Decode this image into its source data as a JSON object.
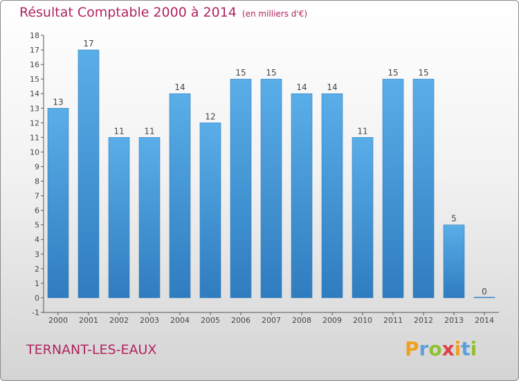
{
  "title": "Résultat Comptable 2000 à 2014",
  "subtitle": "(en milliers d'€)",
  "commune": "TERNANT-LES-EAUX",
  "brand": {
    "letters": [
      "P",
      "r",
      "o",
      "x",
      "i",
      "t",
      "i"
    ],
    "colors": [
      "#f0a020",
      "#5aa0dc",
      "#90c030",
      "#e04040",
      "#f0a020",
      "#5aa0dc",
      "#90c030"
    ]
  },
  "colors": {
    "bar_light": "#5aaee8",
    "bar_dark": "#2f7cbf",
    "title": "#b0245c"
  },
  "chart_data": {
    "type": "bar",
    "title": "Résultat Comptable 2000 à 2014",
    "subtitle": "(en milliers d'€)",
    "categories": [
      "2000",
      "2001",
      "2002",
      "2003",
      "2004",
      "2005",
      "2006",
      "2007",
      "2008",
      "2009",
      "2010",
      "2011",
      "2012",
      "2013",
      "2014"
    ],
    "values": [
      13,
      17,
      11,
      11,
      14,
      12,
      15,
      15,
      14,
      14,
      11,
      15,
      15,
      5,
      0
    ],
    "value_labels": [
      "13",
      "17",
      "11",
      "11",
      "14",
      "12",
      "15",
      "15",
      "14",
      "14",
      "11",
      "15",
      "15",
      "5",
      "0"
    ],
    "ylim": [
      -1,
      18
    ],
    "yticks": [
      "-1",
      "0",
      "1",
      "2",
      "3",
      "4",
      "5",
      "6",
      "7",
      "8",
      "9",
      "10",
      "11",
      "12",
      "13",
      "14",
      "15",
      "16",
      "17",
      "18"
    ],
    "grid": false,
    "legend": "none"
  }
}
